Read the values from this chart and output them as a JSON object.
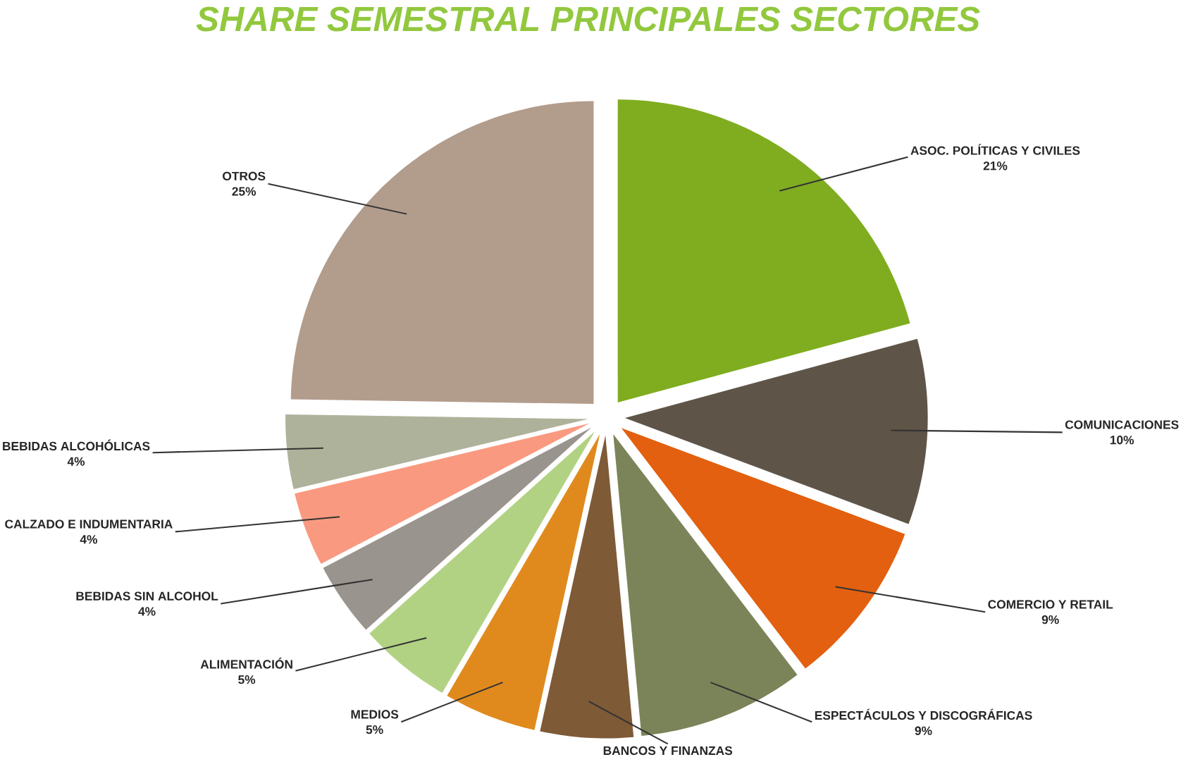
{
  "chart_data": {
    "type": "pie",
    "title": "SHARE SEMESTRAL PRINCIPALES SECTORES",
    "categories": [
      "ASOC. POLÍTICAS Y CIVILES",
      "COMUNICACIONES",
      "COMERCIO Y RETAIL",
      "ESPECTÁCULOS Y DISCOGRÁFICAS",
      "BANCOS Y FINANZAS",
      "MEDIOS",
      "ALIMENTACIÓN",
      "BEBIDAS SIN ALCOHOL",
      "CALZADO E INDUMENTARIA",
      "BEBIDAS ALCOHÓLICAS",
      "OTROS"
    ],
    "values": [
      21,
      10,
      9,
      9,
      5,
      5,
      5,
      4,
      4,
      4,
      25
    ],
    "value_labels": [
      "21%",
      "10%",
      "9%",
      "9%",
      null,
      "5%",
      "5%",
      "4%",
      "4%",
      "4%",
      "25%"
    ],
    "colors": [
      "#7fad1f",
      "#5e5548",
      "#e2600f",
      "#7b8459",
      "#7f5a37",
      "#e08a1e",
      "#b2d283",
      "#9a948e",
      "#f99a80",
      "#aeb29a",
      "#b29c8c"
    ]
  }
}
